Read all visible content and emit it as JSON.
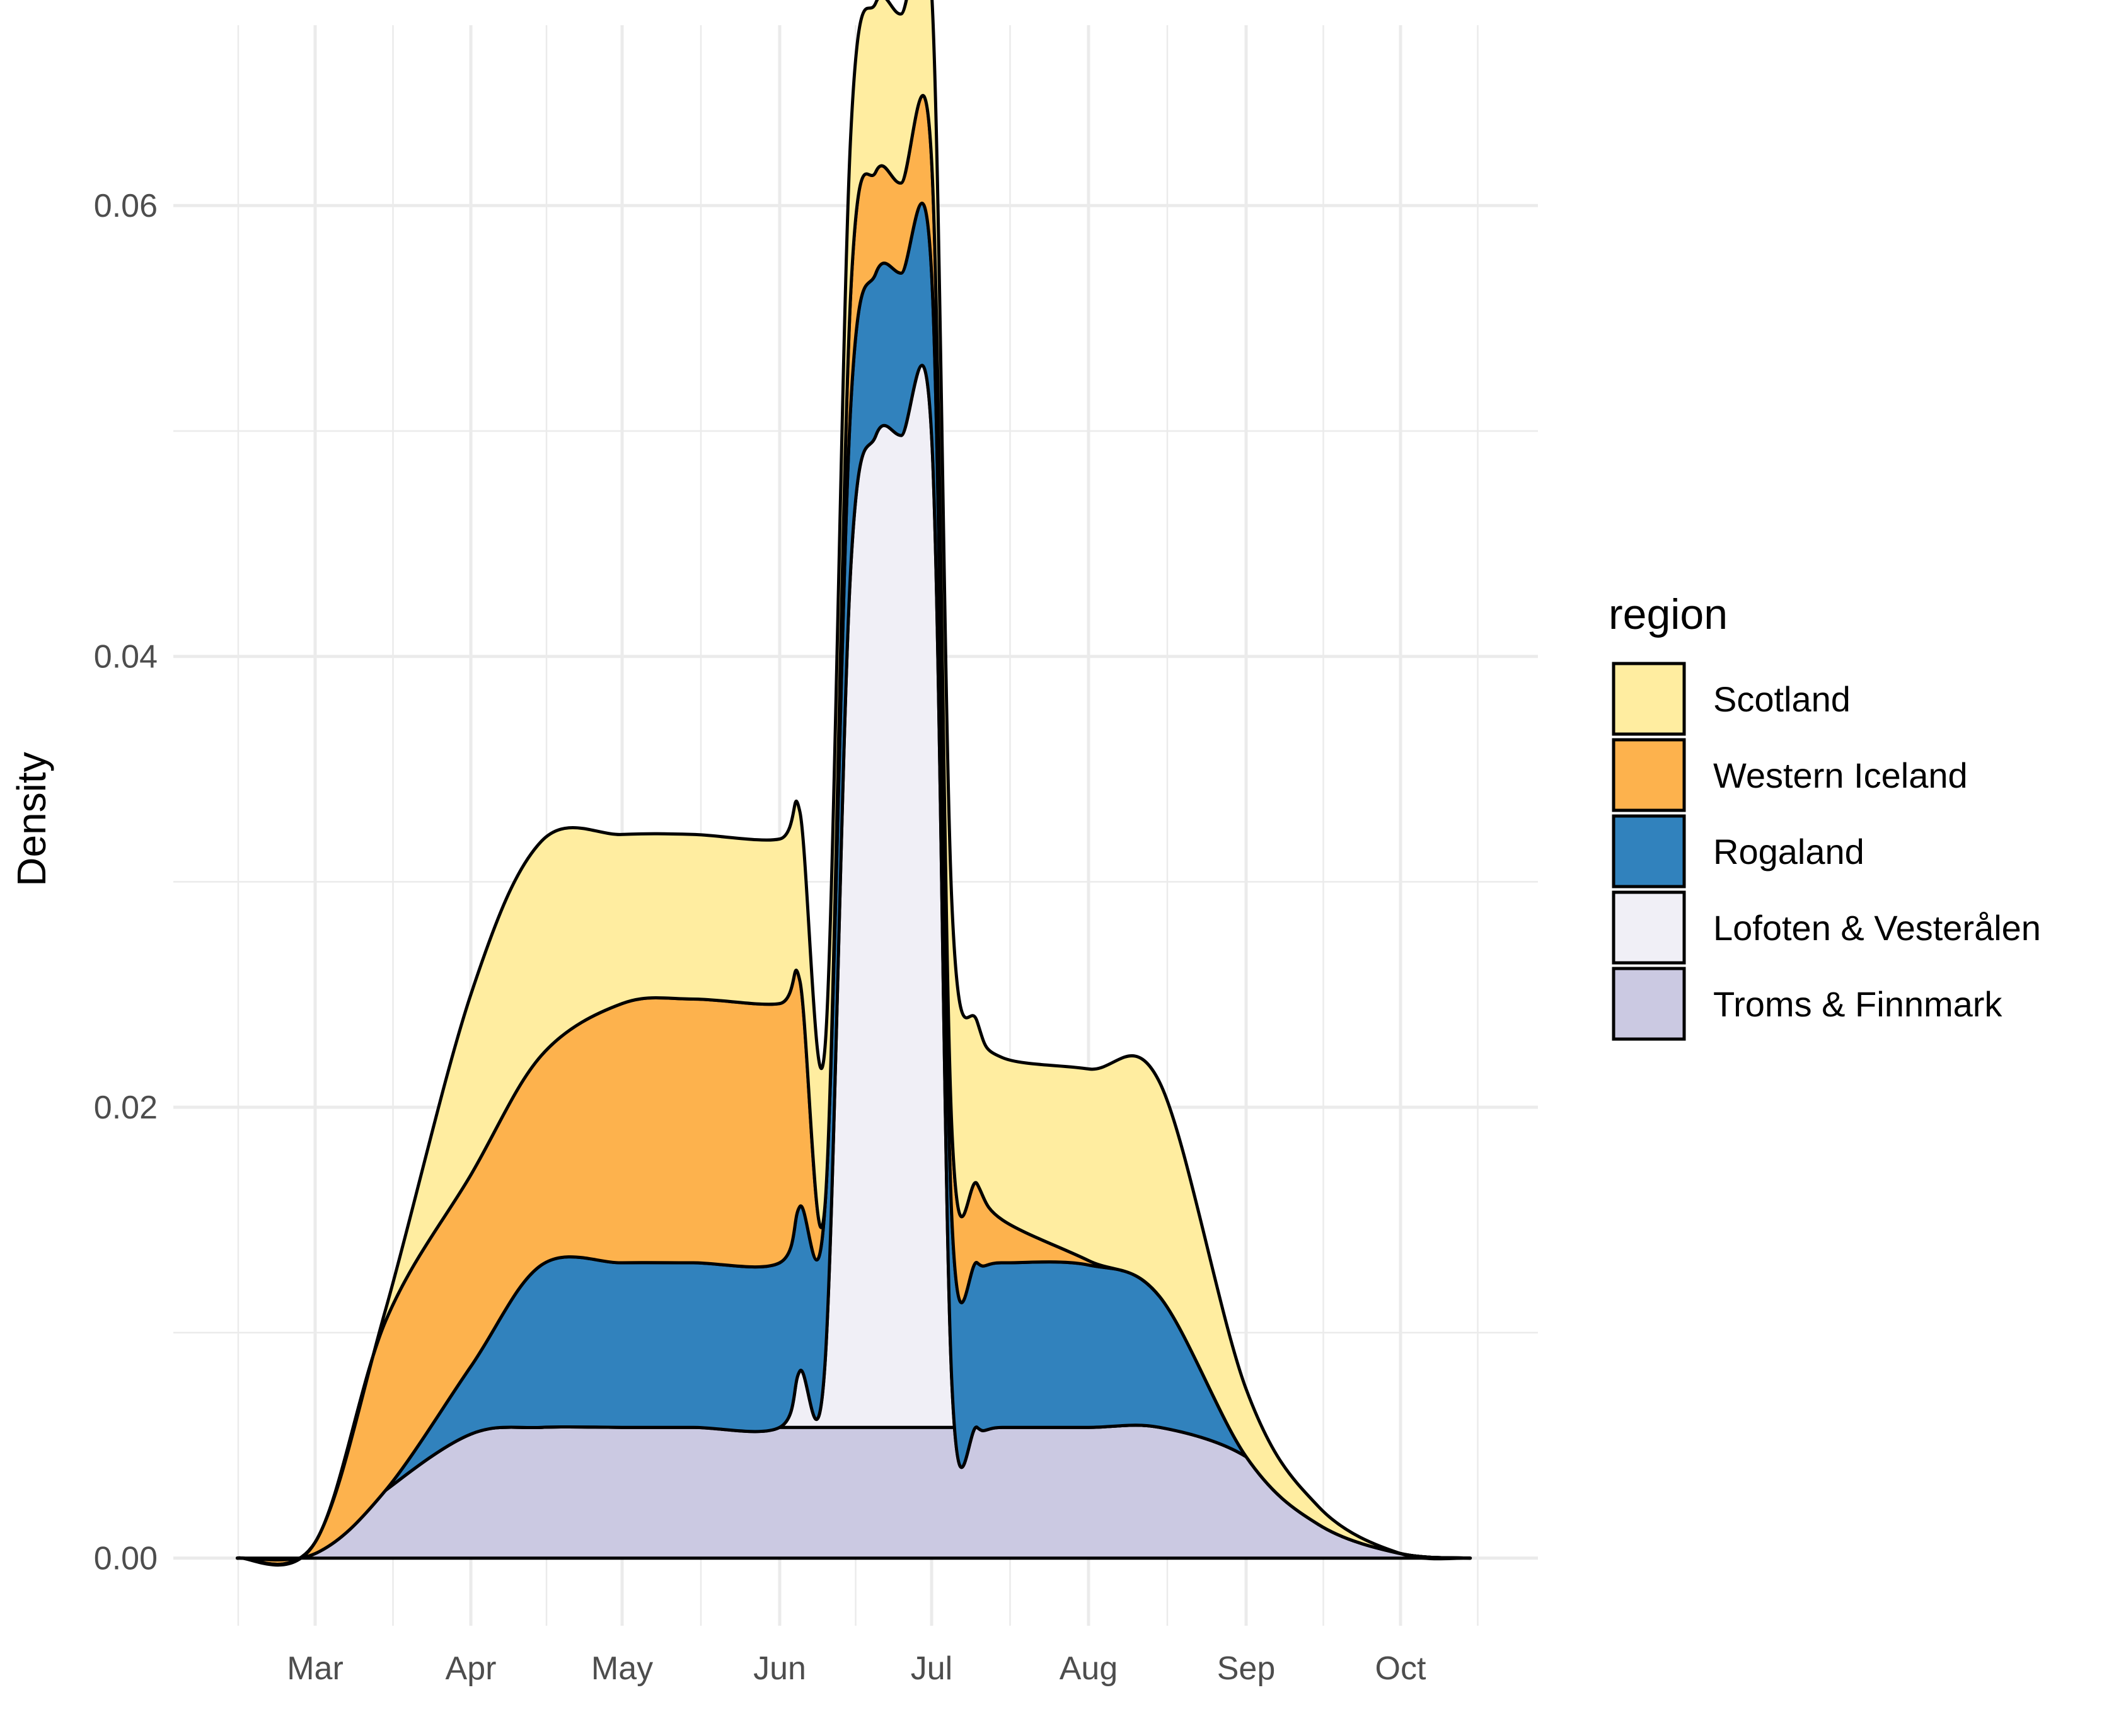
{
  "chart_data": {
    "type": "area",
    "stacked": true,
    "title": "",
    "xlabel": "",
    "ylabel": "Density",
    "ylim": [
      0,
      0.068
    ],
    "grid": true,
    "legend_position": "right",
    "legend_title": "region",
    "x_ticks": [
      "Mar",
      "Apr",
      "May",
      "Jun",
      "Jul",
      "Aug",
      "Sep",
      "Oct"
    ],
    "y_ticks": [
      "0.00",
      "0.02",
      "0.04",
      "0.06"
    ],
    "x": [
      "Feb 15",
      "Mar 1",
      "Mar 15",
      "Apr 1",
      "Apr 15",
      "May 1",
      "May 15",
      "Jun 1",
      "Jun 5",
      "Jun 10",
      "Jun 15",
      "Jun 20",
      "Jun 25",
      "Jul 1",
      "Jul 5",
      "Jul 10",
      "Jul 15",
      "Aug 1",
      "Aug 15",
      "Sep 1",
      "Sep 15",
      "Oct 1",
      "Oct 15"
    ],
    "series": [
      {
        "name": "Troms & Finnmark",
        "color": "#cbc9e2",
        "values": [
          0,
          0.0002,
          0.003,
          0.0055,
          0.0058,
          0.0058,
          0.0058,
          0.0058,
          0.0058,
          0.0058,
          0.0058,
          0.0058,
          0.0058,
          0.0058,
          0.0058,
          0.0058,
          0.0058,
          0.0058,
          0.0058,
          0.0045,
          0.0015,
          0.0002,
          0
        ]
      },
      {
        "name": "Lofoten & Vesterålen",
        "color": "#f0eff6",
        "values": [
          0,
          0,
          0,
          0,
          0,
          0,
          0,
          0,
          0.0025,
          0.003,
          0.038,
          0.044,
          0.044,
          0.044,
          0.002,
          0,
          0,
          0,
          0,
          0,
          0,
          0,
          0
        ]
      },
      {
        "name": "Rogaland",
        "color": "#3182bd",
        "values": [
          0,
          0,
          0,
          0.003,
          0.0072,
          0.0073,
          0.0073,
          0.0073,
          0.0073,
          0.007,
          0.0072,
          0.0072,
          0.0072,
          0.0072,
          0.0073,
          0.0073,
          0.0073,
          0.0072,
          0.0058,
          0.0,
          0.0,
          0,
          0
        ]
      },
      {
        "name": "Western Iceland",
        "color": "#fdb24d",
        "values": [
          0,
          0.0005,
          0.0075,
          0.0085,
          0.0093,
          0.0115,
          0.0117,
          0.0115,
          0.01,
          0.0,
          0.005,
          0.0045,
          0.004,
          0.005,
          0.004,
          0.0035,
          0.0019,
          0.0002,
          0.0,
          0.0,
          0.0,
          0,
          0
        ]
      },
      {
        "name": "Scotland",
        "color": "#ffeda0",
        "values": [
          0,
          0,
          0.0005,
          0.008,
          0.0095,
          0.0075,
          0.0073,
          0.0073,
          0.0075,
          0.007,
          0.007,
          0.0075,
          0.0075,
          0.0075,
          0.01,
          0.0072,
          0.0072,
          0.0085,
          0.0095,
          0.003,
          0.0008,
          0,
          0
        ]
      }
    ]
  }
}
